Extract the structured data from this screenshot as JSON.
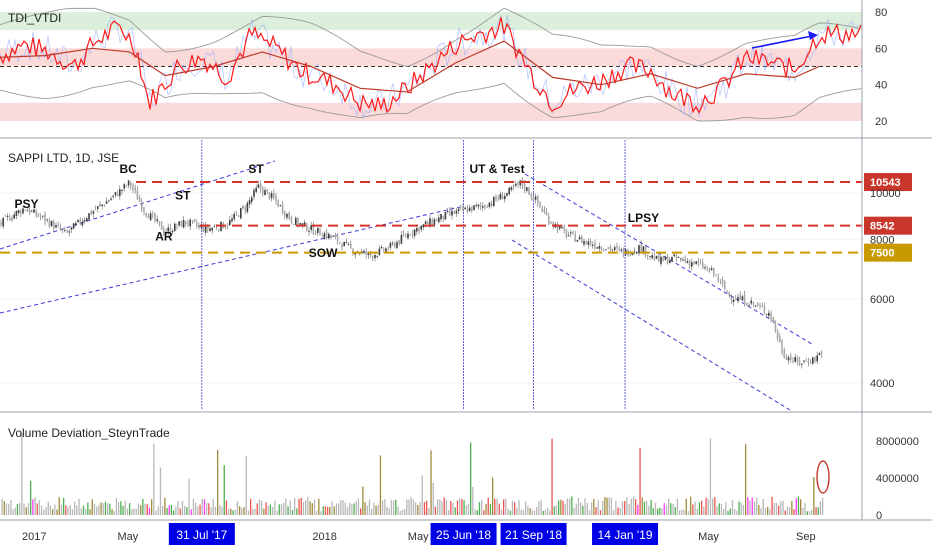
{
  "colors": {
    "background": "#ffffff",
    "pane_border": "#9aa0a8",
    "grid": "#f0f3fa",
    "up_candle": "#3e3e3e",
    "down_candle": "#a9a9a9",
    "wick": "#666666",
    "resistance_line": "#d9342b",
    "support_line": "#c99a00",
    "channel_line": "#3b3bd6",
    "event_line": "#3b3bd6",
    "date_box": "#0000e6",
    "price_box_red": "#c9372c",
    "price_box_gold": "#c99a00",
    "tdi_red": "#ff1a1a",
    "tdi_dark": "#c0392b",
    "tdi_green_band": "#dcefdc",
    "tdi_red_band": "#fbdada",
    "tdi_bands": "#9a9a9a",
    "tdi_blue": "#8fa8ff",
    "arrow": "#1a1aff",
    "vol_grey": "#b8b8b8",
    "vol_green": "#4caf50",
    "vol_red": "#ef5350",
    "vol_olive": "#a08c3c",
    "vol_magenta": "#ff3cff"
  },
  "tdi_pane": {
    "title": "TDI_VTDI",
    "y_ticks": [
      "80",
      "60",
      "40",
      "20"
    ],
    "y_range": [
      10,
      85
    ],
    "green_band": [
      70,
      80
    ],
    "red_band_upper": [
      50,
      60
    ],
    "red_band_lower": [
      20,
      30
    ],
    "midline": 50
  },
  "price_pane": {
    "title": "SAPPI LTD, 1D, JSE",
    "y_ticks": [
      "10000",
      "8000",
      "6000",
      "4000"
    ],
    "y_scale": "log",
    "y_range": [
      3500,
      11500
    ],
    "annotations": [
      {
        "text": "PSY",
        "x": "2016-12-20",
        "y": 9300
      },
      {
        "text": "BC",
        "x": "2017-05-01",
        "y": 11000
      },
      {
        "text": "ST",
        "x": "2017-07-10",
        "y": 9700
      },
      {
        "text": "AR",
        "x": "2017-06-15",
        "y": 7950
      },
      {
        "text": "ST",
        "x": "2017-10-10",
        "y": 11000
      },
      {
        "text": "SOW",
        "x": "2017-12-25",
        "y": 7350
      },
      {
        "text": "UT & Test",
        "x": "2018-07-15",
        "y": 11000
      },
      {
        "text": "LPSY",
        "x": "2019-01-30",
        "y": 8700
      }
    ],
    "levels": [
      {
        "label": "10543",
        "value": 10543,
        "color": "red"
      },
      {
        "label": "8542",
        "value": 8542,
        "color": "red"
      },
      {
        "label": "7500",
        "value": 7500,
        "color": "gold"
      }
    ]
  },
  "volume_pane": {
    "title": "Volume Deviation_SteynTrade",
    "y_ticks": [
      "8000000",
      "4000000",
      "0"
    ],
    "y_range": [
      0,
      10500000
    ]
  },
  "x_axis": {
    "labels": [
      {
        "text": "2017",
        "x": "2017-01-01"
      },
      {
        "text": "May",
        "x": "2017-05-01"
      },
      {
        "text": "p",
        "x": "2017-09-01"
      },
      {
        "text": "2018",
        "x": "2018-01-01"
      },
      {
        "text": "May",
        "x": "2018-05-01"
      },
      {
        "text": "May",
        "x": "2019-05-01"
      },
      {
        "text": "Sep",
        "x": "2019-09-01"
      }
    ],
    "highlighted_dates": [
      {
        "text": "31 Jul '17",
        "x": "2017-07-31"
      },
      {
        "text": "25 Jun '18",
        "x": "2018-06-25"
      },
      {
        "text": "21 Sep '18",
        "x": "2018-09-21"
      },
      {
        "text": "14 Jan '19",
        "x": "2019-01-14"
      }
    ]
  },
  "chart_data": [
    {
      "type": "line",
      "title": "TDI_VTDI",
      "xlabel": "",
      "ylabel": "",
      "ylim": [
        10,
        85
      ],
      "series": [
        {
          "points": [
            [
              "2016-11-15",
              55
            ],
            [
              "2016-12-20",
              62
            ],
            [
              "2017-01-20",
              58
            ],
            [
              "2017-02-20",
              50
            ],
            [
              "2017-03-20",
              64
            ],
            [
              "2017-04-20",
              72
            ],
            [
              "2017-05-10",
              60
            ],
            [
              "2017-05-25",
              30
            ],
            [
              "2017-06-10",
              38
            ],
            [
              "2017-07-01",
              50
            ],
            [
              "2017-08-01",
              55
            ],
            [
              "2017-09-01",
              44
            ],
            [
              "2017-10-01",
              68
            ],
            [
              "2017-11-01",
              60
            ],
            [
              "2017-12-01",
              48
            ],
            [
              "2018-01-15",
              40
            ],
            [
              "2018-02-15",
              30
            ],
            [
              "2018-03-15",
              28
            ],
            [
              "2018-04-15",
              38
            ],
            [
              "2018-05-15",
              50
            ],
            [
              "2018-06-15",
              62
            ],
            [
              "2018-07-15",
              68
            ],
            [
              "2018-08-15",
              72
            ],
            [
              "2018-09-20",
              45
            ],
            [
              "2018-10-15",
              30
            ],
            [
              "2018-11-15",
              38
            ],
            [
              "2018-12-15",
              42
            ],
            [
              "2019-01-15",
              50
            ],
            [
              "2019-02-15",
              48
            ],
            [
              "2019-03-15",
              35
            ],
            [
              "2019-04-15",
              30
            ],
            [
              "2019-05-15",
              38
            ],
            [
              "2019-06-15",
              55
            ],
            [
              "2019-07-15",
              52
            ],
            [
              "2019-08-15",
              48
            ],
            [
              "2019-09-15",
              68
            ]
          ]
        },
        {
          "points": [
            [
              "2016-11-15",
              55
            ],
            [
              "2017-01-15",
              56
            ],
            [
              "2017-03-15",
              60
            ],
            [
              "2017-05-01",
              58
            ],
            [
              "2017-06-15",
              45
            ],
            [
              "2017-08-15",
              50
            ],
            [
              "2017-10-15",
              58
            ],
            [
              "2017-12-15",
              50
            ],
            [
              "2018-02-15",
              38
            ],
            [
              "2018-04-15",
              36
            ],
            [
              "2018-06-15",
              52
            ],
            [
              "2018-08-15",
              64
            ],
            [
              "2018-10-15",
              44
            ],
            [
              "2018-12-15",
              40
            ],
            [
              "2019-02-15",
              46
            ],
            [
              "2019-04-15",
              38
            ],
            [
              "2019-06-15",
              46
            ],
            [
              "2019-08-15",
              44
            ],
            [
              "2019-09-15",
              50
            ]
          ]
        }
      ]
    },
    {
      "type": "line",
      "title": "SAPPI LTD, 1D, JSE",
      "xlabel": "",
      "ylabel": "",
      "ylim": [
        3500,
        11500
      ],
      "y_scale": "log",
      "series": [
        {
          "points": [
            [
              "2016-11-15",
              8500
            ],
            [
              "2016-12-01",
              8900
            ],
            [
              "2016-12-20",
              9300
            ],
            [
              "2017-01-15",
              8800
            ],
            [
              "2017-02-10",
              8200
            ],
            [
              "2017-03-10",
              9000
            ],
            [
              "2017-04-10",
              9800
            ],
            [
              "2017-05-01",
              10500
            ],
            [
              "2017-05-20",
              9200
            ],
            [
              "2017-06-15",
              8300
            ],
            [
              "2017-07-10",
              8700
            ],
            [
              "2017-08-05",
              8400
            ],
            [
              "2017-09-01",
              8600
            ],
            [
              "2017-09-25",
              9400
            ],
            [
              "2017-10-10",
              10300
            ],
            [
              "2017-10-30",
              9700
            ],
            [
              "2017-11-20",
              8800
            ],
            [
              "2017-12-15",
              8400
            ],
            [
              "2018-01-10",
              8100
            ],
            [
              "2018-02-05",
              7600
            ],
            [
              "2018-03-01",
              7400
            ],
            [
              "2018-03-25",
              7700
            ],
            [
              "2018-04-20",
              8300
            ],
            [
              "2018-05-15",
              8700
            ],
            [
              "2018-06-05",
              9000
            ],
            [
              "2018-06-25",
              9200
            ],
            [
              "2018-07-20",
              9400
            ],
            [
              "2018-08-20",
              10000
            ],
            [
              "2018-09-05",
              10500
            ],
            [
              "2018-09-21",
              9800
            ],
            [
              "2018-10-10",
              8800
            ],
            [
              "2018-11-01",
              8200
            ],
            [
              "2018-11-25",
              7900
            ],
            [
              "2018-12-20",
              7700
            ],
            [
              "2019-01-14",
              7500
            ],
            [
              "2019-02-01",
              7700
            ],
            [
              "2019-02-25",
              7200
            ],
            [
              "2019-03-20",
              7300
            ],
            [
              "2019-04-15",
              7100
            ],
            [
              "2019-05-05",
              6800
            ],
            [
              "2019-05-25",
              6100
            ],
            [
              "2019-06-20",
              5900
            ],
            [
              "2019-07-15",
              5600
            ],
            [
              "2019-08-01",
              4600
            ],
            [
              "2019-08-20",
              4400
            ],
            [
              "2019-09-10",
              4500
            ],
            [
              "2019-09-20",
              4700
            ]
          ]
        }
      ]
    },
    {
      "type": "bar",
      "title": "Volume Deviation_SteynTrade",
      "xlabel": "",
      "ylabel": "",
      "ylim": [
        0,
        10500000
      ],
      "categories": [],
      "series": [
        {
          "values": []
        }
      ]
    }
  ]
}
